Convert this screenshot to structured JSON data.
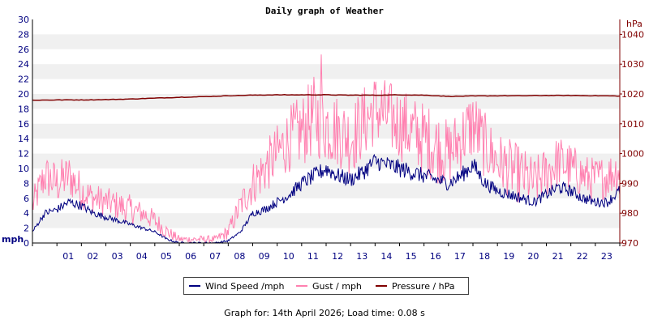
{
  "chart_data": {
    "type": "line",
    "title": "Daily graph of Weather",
    "left_axis_unit": "mph",
    "right_axis_unit": "hPa",
    "ylim_left": [
      0,
      30
    ],
    "ylim_right": [
      970,
      1045
    ],
    "y_ticks_left": [
      "0",
      "2",
      "4",
      "6",
      "8",
      "10",
      "12",
      "14",
      "16",
      "18",
      "20",
      "22",
      "24",
      "26",
      "28",
      "30"
    ],
    "y_ticks_right": [
      "970",
      "980",
      "990",
      "1000",
      "1010",
      "1020",
      "1030",
      "1040"
    ],
    "x_ticks": [
      "01",
      "02",
      "03",
      "04",
      "05",
      "06",
      "07",
      "08",
      "09",
      "10",
      "11",
      "12",
      "13",
      "14",
      "15",
      "16",
      "17",
      "18",
      "19",
      "20",
      "21",
      "22",
      "23"
    ],
    "grid": "alternating horizontal bands",
    "legend_position": "bottom",
    "series": [
      {
        "name": "Wind Speed /mph",
        "color": "#000080",
        "axis": "left",
        "x_hours": [
          0,
          0.5,
          1,
          1.5,
          2,
          2.5,
          3,
          3.5,
          4,
          4.5,
          5,
          5.5,
          6,
          6.5,
          7,
          7.5,
          8,
          8.5,
          9,
          9.5,
          10,
          10.5,
          11,
          11.5,
          12,
          12.5,
          13,
          13.5,
          14,
          14.5,
          15,
          15.5,
          16,
          16.5,
          17,
          17.5,
          18,
          18.5,
          19,
          19.5,
          20,
          20.5,
          21,
          21.5,
          22,
          22.5,
          23,
          23.5,
          24
        ],
        "values": [
          1.5,
          4,
          4.5,
          5.5,
          5,
          4,
          3.5,
          3,
          2.5,
          2,
          1.5,
          0.5,
          0,
          0,
          0,
          0,
          0.3,
          1.5,
          4,
          4.5,
          5.5,
          6.5,
          8,
          9,
          10,
          9,
          8.5,
          9.5,
          11,
          10.5,
          10,
          9.5,
          9,
          8.5,
          8,
          9,
          10.5,
          8,
          7,
          6.5,
          6,
          5.5,
          6.5,
          7.5,
          7,
          6,
          5.5,
          5.5,
          7
        ]
      },
      {
        "name": "Gust / mph",
        "color": "#ff80b0",
        "axis": "left",
        "x_hours": [
          0,
          0.5,
          1,
          1.5,
          2,
          2.5,
          3,
          3.5,
          4,
          4.5,
          5,
          5.5,
          6,
          6.5,
          7,
          7.5,
          8,
          8.5,
          9,
          9.5,
          10,
          10.5,
          11,
          11.5,
          12,
          12.5,
          13,
          13.5,
          14,
          14.5,
          15,
          15.5,
          16,
          16.5,
          17,
          17.5,
          18,
          18.5,
          19,
          19.5,
          20,
          20.5,
          21,
          21.5,
          22,
          22.5,
          23,
          23.5,
          24
        ],
        "values": [
          5,
          9,
          8,
          9,
          7,
          6,
          5.5,
          5,
          4.5,
          4,
          3,
          1.5,
          0.5,
          0.5,
          0.5,
          0.5,
          1.5,
          5,
          8,
          10,
          12,
          14,
          15,
          17,
          16,
          15,
          14,
          16,
          18,
          17,
          16,
          15,
          14,
          13,
          12,
          14,
          16,
          13,
          11,
          10,
          9,
          8,
          9.5,
          11,
          10,
          9,
          8.5,
          9,
          10
        ],
        "spread": [
          2,
          3,
          3,
          3,
          2.5,
          2,
          2,
          2,
          2,
          1.5,
          1.5,
          1,
          0.5,
          0.5,
          0.5,
          0.5,
          1,
          2,
          3,
          3.5,
          4,
          4.5,
          5,
          5.5,
          5.5,
          5,
          5,
          5,
          5,
          5,
          5,
          5,
          5,
          5,
          4.5,
          4.5,
          5,
          4.5,
          4,
          4,
          4,
          3.5,
          3.5,
          3.5,
          3.5,
          3,
          3,
          3,
          3
        ],
        "peak": {
          "hour": 11.8,
          "value": 25.3
        }
      },
      {
        "name": "Pressure / hPa",
        "color": "#800000",
        "axis": "right",
        "x_hours": [
          0,
          1,
          2,
          3,
          4,
          5,
          6,
          7,
          8,
          9,
          10,
          11,
          12,
          13,
          14,
          15,
          16,
          17,
          18,
          19,
          20,
          21,
          22,
          23,
          24
        ],
        "values": [
          1017.9,
          1018.0,
          1018.0,
          1018.1,
          1018.3,
          1018.6,
          1018.9,
          1019.1,
          1019.4,
          1019.6,
          1019.7,
          1019.7,
          1019.7,
          1019.6,
          1019.6,
          1019.7,
          1019.6,
          1019.2,
          1019.3,
          1019.4,
          1019.4,
          1019.5,
          1019.5,
          1019.4,
          1019.3
        ]
      }
    ]
  },
  "footer": "Graph for: 14th April 2026; Load time: 0.08 s"
}
